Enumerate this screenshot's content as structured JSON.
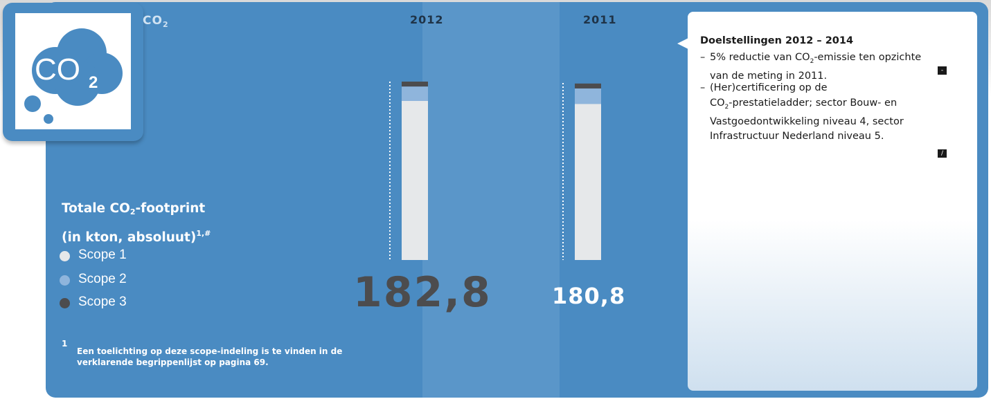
{
  "header": {
    "section_label": "CO",
    "section_label_sub": "2"
  },
  "icon": {
    "name": "co2-cloud-icon",
    "text": "CO",
    "sub": "2"
  },
  "chart_data": {
    "type": "bar",
    "stacked": true,
    "title": "Totale CO2-footprint (in kton, absoluut)",
    "footnote_refs": "1,#",
    "categories": [
      "2012",
      "2011"
    ],
    "totals": [
      182.8,
      180.8
    ],
    "totals_labels": [
      "182,8",
      "180,8"
    ],
    "series": [
      {
        "name": "Scope 1",
        "color": "#e6e8ea",
        "values": [
          163.0,
          160.0
        ]
      },
      {
        "name": "Scope 2",
        "color": "#8fb5dc",
        "values": [
          14.8,
          15.8
        ]
      },
      {
        "name": "Scope 3",
        "color": "#4c4c4e",
        "values": [
          5.0,
          5.0
        ]
      }
    ],
    "ylim": [
      0,
      182.8
    ]
  },
  "title": {
    "line1_a": "Totale CO",
    "line1_sub": "2",
    "line1_b": "-footprint",
    "line2": "(in kton, absoluut)",
    "sup": "1,#"
  },
  "legend": [
    {
      "label": "Scope 1",
      "color": "#e6e8ea"
    },
    {
      "label": "Scope 2",
      "color": "#8fb5dc"
    },
    {
      "label": "Scope 3",
      "color": "#4c4c4e"
    }
  ],
  "footnote": {
    "number": "1",
    "text": "Een toelichting op deze scope-indeling is te vinden in de verklarende begrippenlijst op pagina 69."
  },
  "targets": {
    "title": "Doelstellingen 2012 – 2014",
    "item1_dash": "–",
    "item1_a": "5% reductie van CO",
    "item1_sub": "2",
    "item1_b": "-emissie ten opzichte van de meting in 2011.",
    "item2_dash": "–",
    "item2_line1": "(Her)certificering op de",
    "item2_a": "CO",
    "item2_sub": "2",
    "item2_b": "-prestatieladder; sector Bouw- en Vastgoedontwikkeling niveau 4, sector Infrastructuur Nederland niveau 5.",
    "marker1": "-",
    "marker2": "/"
  }
}
